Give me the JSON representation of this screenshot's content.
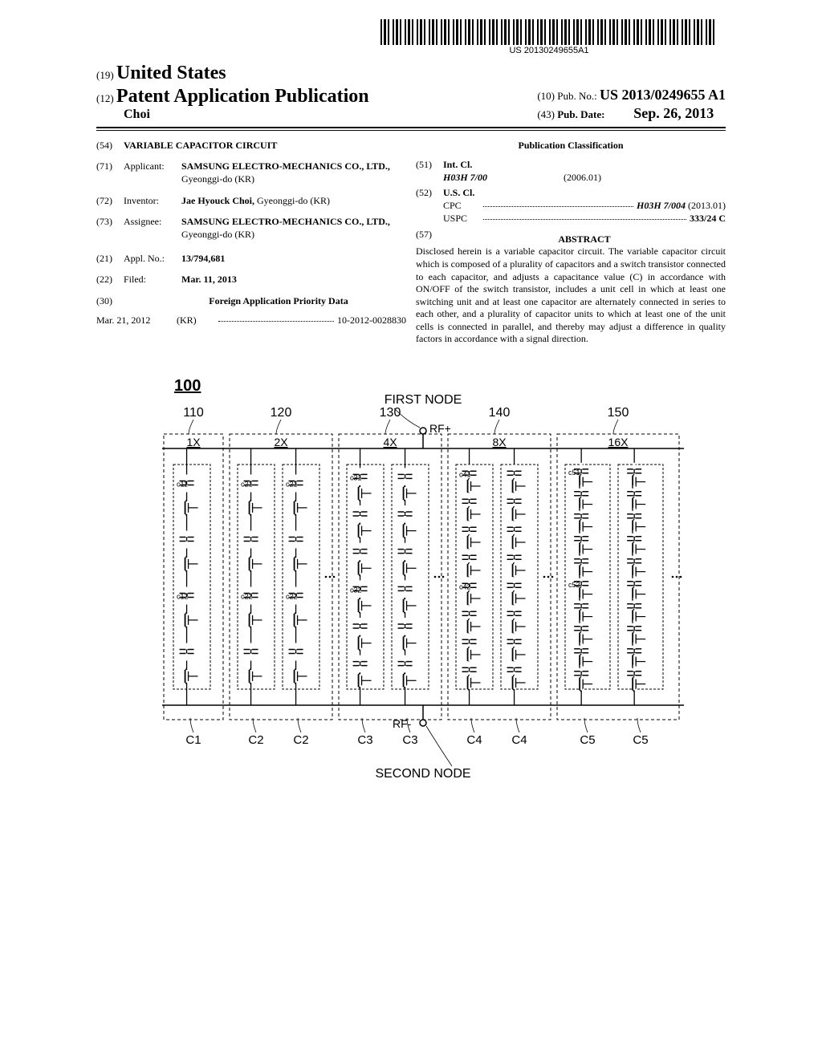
{
  "barcode_text": "US 20130249655A1",
  "header": {
    "country_code": "(19)",
    "country_name": "United States",
    "pub_code": "(12)",
    "pub_type": "Patent Application Publication",
    "inventor_surname": "Choi",
    "pubnum_code": "(10)",
    "pubnum_label": "Pub. No.:",
    "pubnum_value": "US 2013/0249655 A1",
    "pubdate_code": "(43)",
    "pubdate_label": "Pub. Date:",
    "pubdate_value": "Sep. 26, 2013"
  },
  "left_col": {
    "title": {
      "code": "(54)",
      "value": "VARIABLE CAPACITOR CIRCUIT"
    },
    "applicant": {
      "code": "(71)",
      "label": "Applicant:",
      "name": "SAMSUNG ELECTRO-MECHANICS CO., LTD.,",
      "loc": "Gyeonggi-do (KR)"
    },
    "inventor": {
      "code": "(72)",
      "label": "Inventor:",
      "name": "Jae Hyouck Choi,",
      "loc": "Gyeonggi-do (KR)"
    },
    "assignee": {
      "code": "(73)",
      "label": "Assignee:",
      "name": "SAMSUNG ELECTRO-MECHANICS CO., LTD.,",
      "loc": "Gyeonggi-do (KR)"
    },
    "applno": {
      "code": "(21)",
      "label": "Appl. No.:",
      "value": "13/794,681"
    },
    "filed": {
      "code": "(22)",
      "label": "Filed:",
      "value": "Mar. 11, 2013"
    },
    "foreign_header_code": "(30)",
    "foreign_header": "Foreign Application Priority Data",
    "foreign": {
      "date": "Mar. 21, 2012",
      "country": "(KR)",
      "number": "10-2012-0028830"
    }
  },
  "right_col": {
    "pub_class_header": "Publication Classification",
    "intcl": {
      "code": "(51)",
      "label": "Int. Cl.",
      "main": "H03H 7/00",
      "year": "(2006.01)"
    },
    "uscl": {
      "code": "(52)",
      "label": "U.S. Cl.",
      "cpc_label": "CPC",
      "cpc_value": "H03H 7/004",
      "cpc_year": "(2013.01)",
      "uspc_label": "USPC",
      "uspc_value": "333/24 C"
    },
    "abstract": {
      "code": "(57)",
      "header": "ABSTRACT",
      "text": "Disclosed herein is a variable capacitor circuit. The variable capacitor circuit which is composed of a plurality of capacitors and a switch transistor connected to each capacitor, and adjusts a capacitance value (C) in accordance with ON/OFF of the switch transistor, includes a unit cell in which at least one switching unit and at least one capacitor are alternately connected in series to each other, and a plurality of capacitor units to which at least one of the unit cells is connected in parallel, and thereby may adjust a difference in quality factors in accordance with a signal direction."
    }
  },
  "figure": {
    "ref_num": "100",
    "first_node": "FIRST NODE",
    "second_node": "SECOND NODE",
    "rf_plus": "RF+",
    "rf_minus": "RF-",
    "groups": [
      {
        "ref": "110",
        "mult": "1X",
        "bottom": "C1",
        "cols": 1,
        "caps": [
          "c11",
          "c12"
        ]
      },
      {
        "ref": "120",
        "mult": "2X",
        "bottom": "C2",
        "bottom2": "C2",
        "cols": 2,
        "caps": [
          "c21",
          "c22"
        ]
      },
      {
        "ref": "130",
        "mult": "4X",
        "bottom": "C3",
        "bottom2": "C3",
        "cols": 2,
        "caps": [
          "c31",
          "c32"
        ]
      },
      {
        "ref": "140",
        "mult": "8X",
        "bottom": "C4",
        "bottom2": "C4",
        "cols": 2,
        "caps": [
          "c41",
          "c42"
        ]
      },
      {
        "ref": "150",
        "mult": "16X",
        "bottom": "C5",
        "bottom2": "C5",
        "cols": 2,
        "caps": [
          "c51",
          "c52"
        ]
      }
    ],
    "stroke": "#000000",
    "dash": "4,3",
    "text_color": "#000000",
    "font_family": "Arial, sans-serif"
  }
}
